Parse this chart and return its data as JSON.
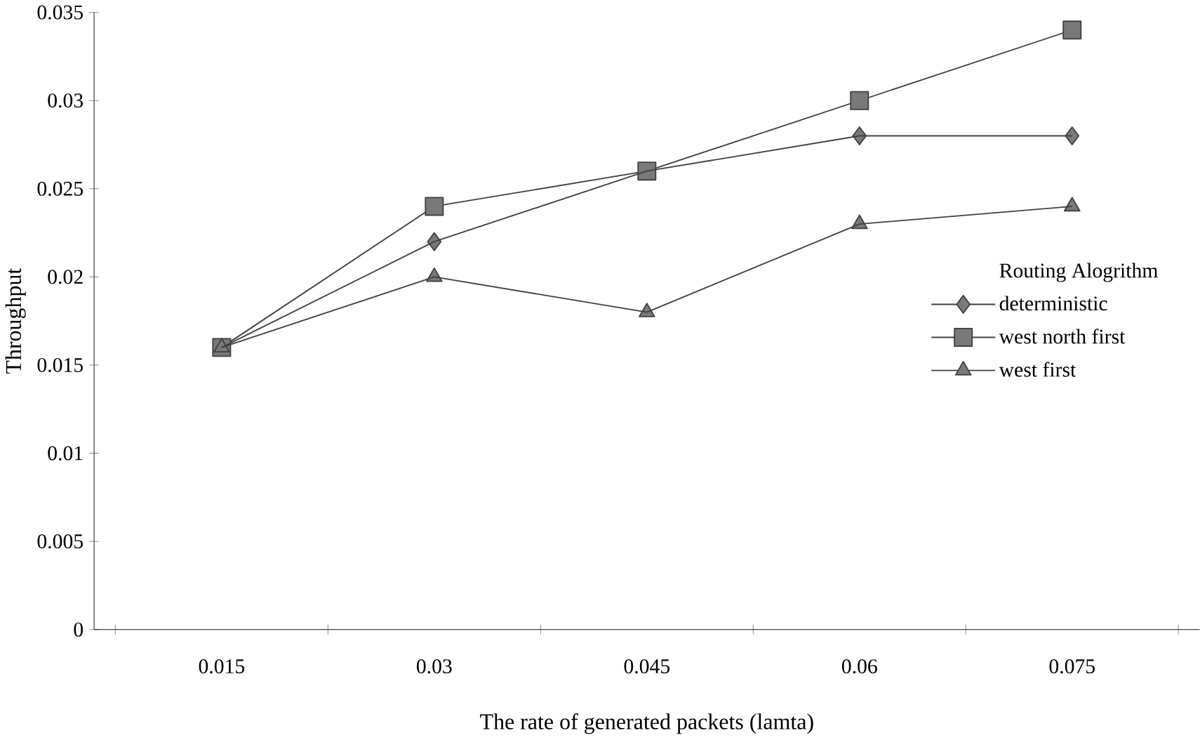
{
  "chart_data": {
    "type": "line",
    "xlabel": "The rate of generated packets (lamta)",
    "ylabel": "Throughput",
    "categories": [
      "0.015",
      "0.03",
      "0.045",
      "0.06",
      "0.075"
    ],
    "series": [
      {
        "name": "deterministic",
        "color": "#404040",
        "marker": "diamond",
        "values": [
          0.016,
          0.022,
          0.026,
          0.028,
          0.028
        ]
      },
      {
        "name": "west north first",
        "color": "#404040",
        "marker": "square",
        "values": [
          0.016,
          0.024,
          0.026,
          0.03,
          0.034
        ]
      },
      {
        "name": "west first",
        "color": "#404040",
        "marker": "triangle",
        "values": [
          0.016,
          0.02,
          0.018,
          0.023,
          0.024
        ]
      }
    ],
    "legend_title": "Routing Alogrithm",
    "legend": "right",
    "grid": false,
    "line_style": "solid",
    "ylim": [
      0,
      0.035
    ],
    "yticks": [
      0,
      0.005,
      0.01,
      0.015,
      0.02,
      0.025,
      0.03,
      0.035
    ]
  }
}
